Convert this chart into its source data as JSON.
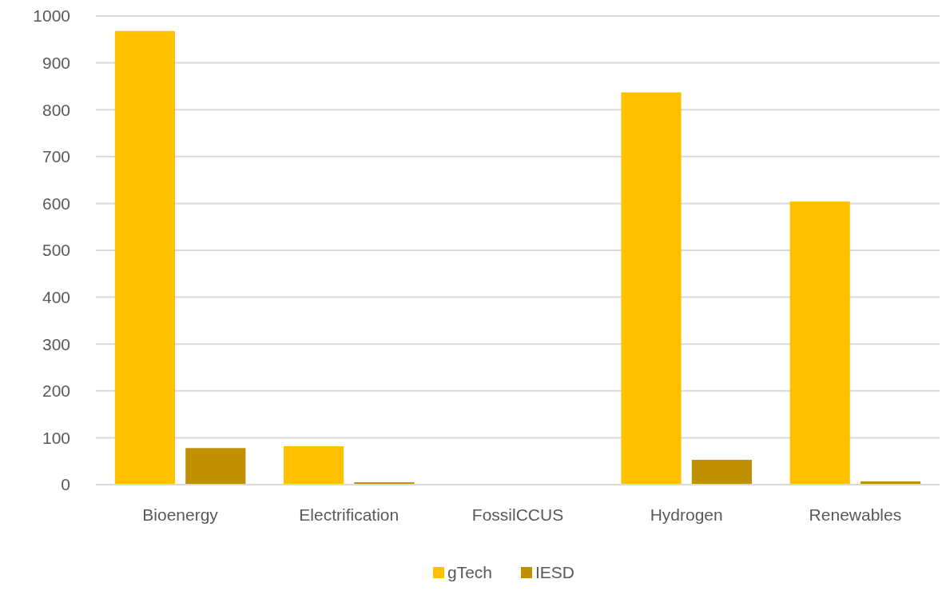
{
  "chart_data": {
    "type": "bar",
    "categories": [
      "Bioenergy",
      "Electrification",
      "FossilCCUS",
      "Hydrogen",
      "Renewables"
    ],
    "series": [
      {
        "name": "gTech",
        "color": "#ffc000",
        "values": [
          968,
          82,
          0,
          837,
          604
        ]
      },
      {
        "name": "IESD",
        "color": "#bf9000",
        "values": [
          78,
          5,
          0,
          53,
          7
        ]
      }
    ],
    "ylim": [
      0,
      1000
    ],
    "yticks": [
      0,
      100,
      200,
      300,
      400,
      500,
      600,
      700,
      800,
      900,
      1000
    ],
    "grid": "y",
    "legend": "bottom"
  }
}
